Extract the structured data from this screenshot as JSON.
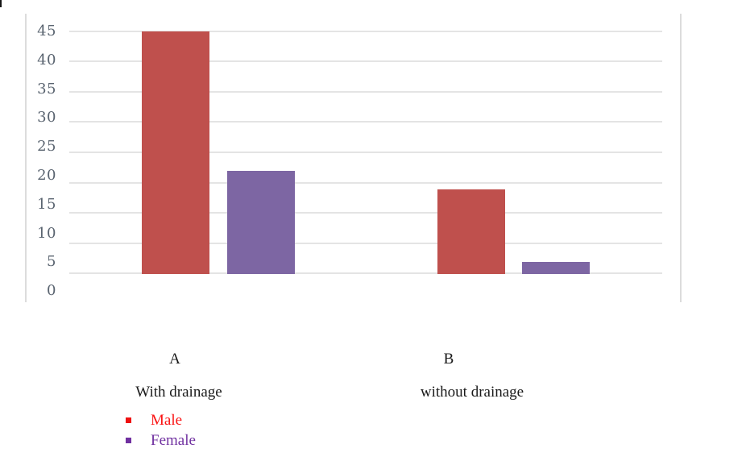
{
  "chart_data": {
    "type": "bar",
    "title": "",
    "categories": [
      "A",
      "B"
    ],
    "category_sublabels": [
      "With drainage",
      "without drainage"
    ],
    "series": [
      {
        "name": "Male",
        "values": [
          45,
          19
        ],
        "color": "#bf504d",
        "legend_bullet_color": "#ee1111",
        "legend_text_color": "#fa1414"
      },
      {
        "name": "Female",
        "values": [
          22,
          7
        ],
        "color": "#7d66a3",
        "legend_bullet_color": "#7030a0",
        "legend_text_color": "#7030a0"
      }
    ],
    "yticks": [
      "45",
      "40",
      "35",
      "30",
      "25",
      "20",
      "15",
      "10",
      "5",
      "0"
    ],
    "ylim": [
      0,
      45
    ],
    "ytick_step": 5,
    "grid": true,
    "legend_position": "bottom-left",
    "bars_visually_start_at": 5,
    "axis_label_color": "#5a6470",
    "gridline_color": "#e4e4e4"
  }
}
